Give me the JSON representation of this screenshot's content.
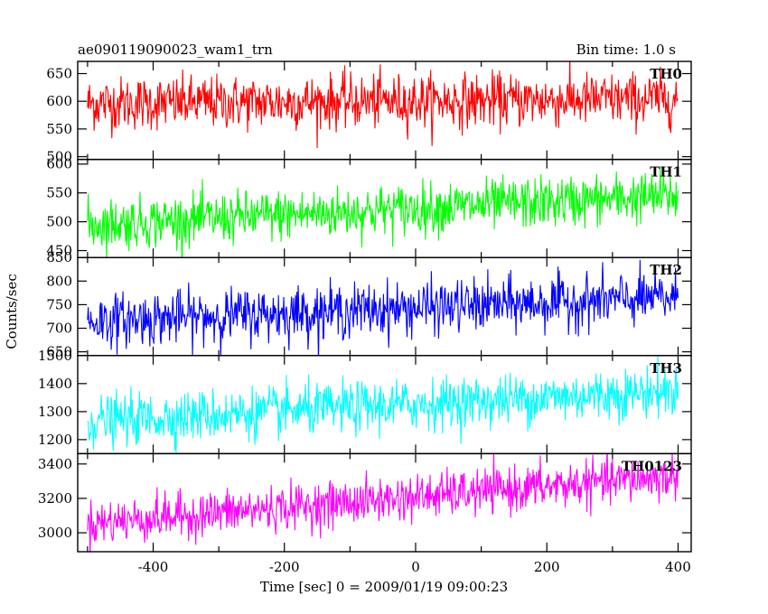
{
  "header": {
    "left_title": "ae090119090023_wam1_trn",
    "right_title": "Bin time: 1.0 s"
  },
  "axes": {
    "xlabel": "Time [sec] 0 = 2009/01/19 09:00:23",
    "ylabel": "Counts/sec",
    "xlim": [
      -515,
      420
    ],
    "x_ticks": [
      -400,
      -200,
      0,
      200,
      400
    ]
  },
  "chart_data": {
    "type": "line",
    "x_range": [
      -500,
      400
    ],
    "x_step": 1,
    "panels": [
      {
        "name": "TH0",
        "color": "#ff0000",
        "ylim": [
          495,
          672
        ],
        "y_ticks": [
          500,
          550,
          600,
          650
        ],
        "trend_start": 596,
        "trend_end": 604,
        "noise_sd": 24
      },
      {
        "name": "TH1",
        "color": "#00ff00",
        "ylim": [
          438,
          608
        ],
        "y_ticks": [
          450,
          500,
          550,
          600
        ],
        "trend_start": 495,
        "trend_end": 545,
        "noise_sd": 22
      },
      {
        "name": "TH2",
        "color": "#0000ff",
        "ylim": [
          642,
          850
        ],
        "y_ticks": [
          650,
          700,
          750,
          800,
          850
        ],
        "trend_start": 715,
        "trend_end": 765,
        "noise_sd": 28
      },
      {
        "name": "TH3",
        "color": "#00ffff",
        "ylim": [
          1150,
          1500
        ],
        "y_ticks": [
          1200,
          1300,
          1400,
          1500
        ],
        "trend_start": 1265,
        "trend_end": 1375,
        "noise_sd": 45
      },
      {
        "name": "TH0123",
        "color": "#ff00ff",
        "ylim": [
          2890,
          3460
        ],
        "y_ticks": [
          3000,
          3200,
          3400
        ],
        "trend_start": 3055,
        "trend_end": 3330,
        "noise_sd": 65
      }
    ]
  }
}
